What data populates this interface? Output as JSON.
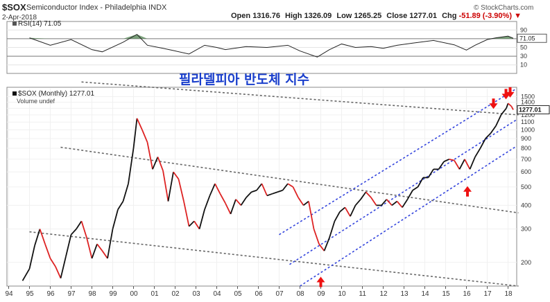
{
  "header": {
    "symbol": "$SOX",
    "name": "Semiconductor Index - Philadelphia INDX",
    "date": "2-Apr-2018",
    "open_label": "Open",
    "open": "1316.76",
    "high_label": "High",
    "high": "1326.09",
    "low_label": "Low",
    "low": "1265.25",
    "close_label": "Close",
    "close": "1277.01",
    "chg_label": "Chg",
    "chg": "-51.89 (-3.90%)",
    "chg_arrow": "▼",
    "credit": "© StockCharts.com"
  },
  "rsi_panel": {
    "legend": "RSI(14) 71.05",
    "value_tag": "71.05",
    "ticks": [
      "90",
      "70",
      "50",
      "30",
      "10"
    ]
  },
  "price_panel": {
    "title": "필라델피아 반도체 지수",
    "legend": "$SOX (Monthly) 1277.01",
    "sub_legend": "Volume undef",
    "value_tag": "1277.01",
    "y_ticks": [
      "1500",
      "1400",
      "1300",
      "1200",
      "1100",
      "1000",
      "900",
      "800",
      "700",
      "600",
      "500",
      "400",
      "300",
      "200"
    ],
    "x_ticks": [
      "94",
      "95",
      "96",
      "97",
      "98",
      "99",
      "00",
      "01",
      "02",
      "03",
      "04",
      "05",
      "06",
      "07",
      "08",
      "09",
      "10",
      "11",
      "12",
      "13",
      "14",
      "15",
      "16",
      "17",
      "18"
    ]
  },
  "colors": {
    "up": "#111111",
    "down": "#dd2222",
    "channel": "#3344dd",
    "trend": "#666666",
    "rsi_fill": "#5a8a5a",
    "title": "#1a3fcc",
    "arrow": "#ee1111"
  },
  "chart_data": {
    "type": "line",
    "title": "필라델피아 반도체 지수",
    "frequency": "monthly (approximate closes)",
    "x": [
      "1994-09",
      "1995-01",
      "1995-04",
      "1995-07",
      "1995-10",
      "1996-01",
      "1996-04",
      "1996-07",
      "1996-10",
      "1997-01",
      "1997-04",
      "1997-07",
      "1997-10",
      "1998-01",
      "1998-04",
      "1998-07",
      "1998-10",
      "1999-01",
      "1999-04",
      "1999-07",
      "1999-10",
      "2000-01",
      "2000-03",
      "2000-06",
      "2000-09",
      "2000-12",
      "2001-03",
      "2001-06",
      "2001-09",
      "2001-12",
      "2002-03",
      "2002-06",
      "2002-09",
      "2002-12",
      "2003-03",
      "2003-06",
      "2003-09",
      "2003-12",
      "2004-03",
      "2004-06",
      "2004-09",
      "2004-12",
      "2005-03",
      "2005-06",
      "2005-09",
      "2005-12",
      "2006-03",
      "2006-06",
      "2006-09",
      "2006-12",
      "2007-03",
      "2007-06",
      "2007-09",
      "2007-12",
      "2008-03",
      "2008-06",
      "2008-09",
      "2008-12",
      "2009-03",
      "2009-06",
      "2009-09",
      "2009-12",
      "2010-03",
      "2010-06",
      "2010-09",
      "2010-12",
      "2011-03",
      "2011-06",
      "2011-09",
      "2011-12",
      "2012-03",
      "2012-06",
      "2012-09",
      "2012-12",
      "2013-03",
      "2013-06",
      "2013-09",
      "2013-12",
      "2014-03",
      "2014-06",
      "2014-09",
      "2014-12",
      "2015-03",
      "2015-06",
      "2015-09",
      "2015-12",
      "2016-03",
      "2016-06",
      "2016-09",
      "2016-12",
      "2017-03",
      "2017-06",
      "2017-09",
      "2017-12",
      "2018-01",
      "2018-03",
      "2018-04"
    ],
    "series": [
      {
        "values": [
          160,
          185,
          245,
          300,
          250,
          210,
          190,
          165,
          215,
          280,
          300,
          330,
          270,
          210,
          250,
          230,
          210,
          300,
          380,
          420,
          520,
          800,
          1150,
          1000,
          860,
          620,
          720,
          610,
          420,
          600,
          550,
          420,
          310,
          330,
          300,
          380,
          450,
          520,
          460,
          410,
          360,
          430,
          400,
          440,
          470,
          480,
          520,
          450,
          460,
          470,
          480,
          520,
          500,
          440,
          400,
          420,
          300,
          250,
          230,
          270,
          330,
          370,
          390,
          350,
          400,
          430,
          470,
          440,
          400,
          400,
          430,
          400,
          420,
          390,
          430,
          480,
          500,
          560,
          560,
          620,
          620,
          680,
          700,
          690,
          620,
          700,
          620,
          720,
          800,
          900,
          960,
          1050,
          1200,
          1300,
          1380,
          1330,
          1277
        ]
      }
    ],
    "y_scale": "log",
    "y_range": [
      150,
      1650
    ],
    "x_range": [
      "1993-12",
      "2018-06"
    ],
    "rsi": {
      "x": [
        "1995-01",
        "1996-01",
        "1997-01",
        "1998-01",
        "1998-07",
        "1999-07",
        "2000-03",
        "2000-09",
        "2001-06",
        "2002-01",
        "2002-09",
        "2003-06",
        "2004-01",
        "2004-06",
        "2005-06",
        "2006-06",
        "2007-06",
        "2008-01",
        "2008-11",
        "2009-06",
        "2010-01",
        "2010-09",
        "2011-06",
        "2012-01",
        "2012-09",
        "2013-06",
        "2014-06",
        "2015-06",
        "2016-01",
        "2016-06",
        "2017-01",
        "2017-06",
        "2018-01",
        "2018-04"
      ],
      "values": [
        72,
        55,
        68,
        45,
        40,
        62,
        80,
        55,
        48,
        42,
        35,
        55,
        50,
        45,
        52,
        50,
        55,
        42,
        28,
        45,
        58,
        50,
        52,
        48,
        55,
        60,
        66,
        56,
        44,
        55,
        68,
        72,
        76,
        71
      ],
      "levels": [
        70,
        30
      ],
      "ticks": [
        90,
        70,
        50,
        30,
        10
      ]
    },
    "trendlines": "two downward-sloping gray dashed lines; upward blue dashed channel from 2009 low",
    "annotations": "red arrows marking 2009 low, 2016 low and 2018 highs"
  }
}
